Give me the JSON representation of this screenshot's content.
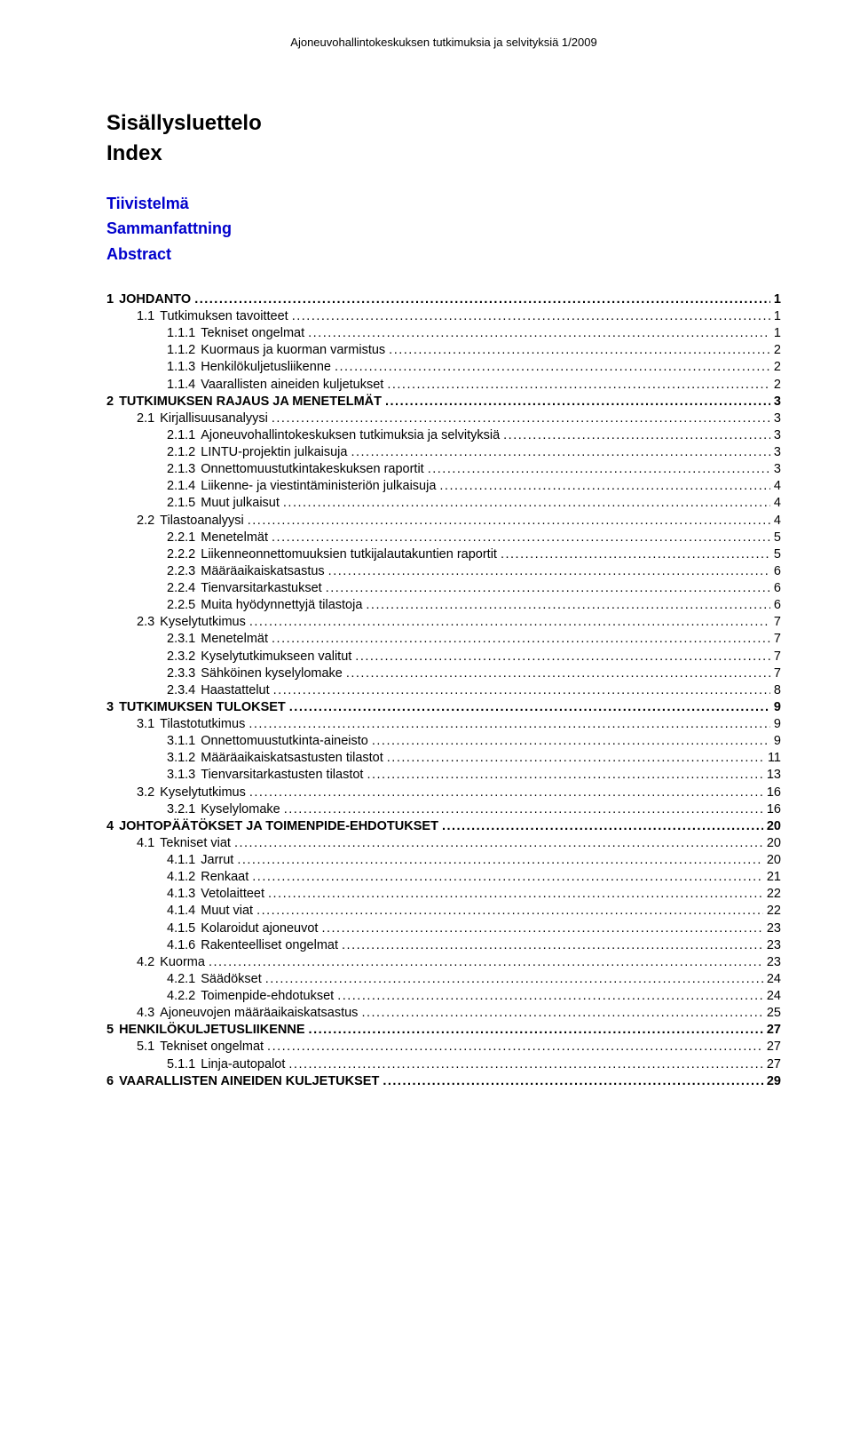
{
  "header": "Ajoneuvohallintokeskuksen tutkimuksia ja selvityksiä 1/2009",
  "title1": "Sisällysluettelo",
  "title2": "Index",
  "front": [
    "Tiivistelmä",
    "Sammanfattning",
    "Abstract"
  ],
  "colors": {
    "link": "#0000cc",
    "text": "#000000",
    "background": "#ffffff"
  },
  "typography": {
    "body_fontsize_pt": 11,
    "title_fontsize_pt": 18,
    "frontlink_fontsize_pt": 14,
    "font_family": "Arial"
  },
  "toc": [
    {
      "num": "1",
      "label": "JOHDANTO",
      "page": "1",
      "level": 0,
      "bold": true
    },
    {
      "num": "1.1",
      "label": "Tutkimuksen tavoitteet",
      "page": "1",
      "level": 1,
      "bold": false
    },
    {
      "num": "1.1.1",
      "label": "Tekniset ongelmat",
      "page": "1",
      "level": 2,
      "bold": false
    },
    {
      "num": "1.1.2",
      "label": "Kuormaus ja kuorman varmistus",
      "page": "2",
      "level": 2,
      "bold": false
    },
    {
      "num": "1.1.3",
      "label": "Henkilökuljetusliikenne",
      "page": "2",
      "level": 2,
      "bold": false
    },
    {
      "num": "1.1.4",
      "label": "Vaarallisten aineiden kuljetukset",
      "page": "2",
      "level": 2,
      "bold": false
    },
    {
      "num": "2",
      "label": "TUTKIMUKSEN RAJAUS JA MENETELMÄT",
      "page": "3",
      "level": 0,
      "bold": true
    },
    {
      "num": "2.1",
      "label": "Kirjallisuusanalyysi",
      "page": "3",
      "level": 1,
      "bold": false
    },
    {
      "num": "2.1.1",
      "label": "Ajoneuvohallintokeskuksen tutkimuksia ja selvityksiä",
      "page": "3",
      "level": 2,
      "bold": false
    },
    {
      "num": "2.1.2",
      "label": "LINTU-projektin julkaisuja",
      "page": "3",
      "level": 2,
      "bold": false
    },
    {
      "num": "2.1.3",
      "label": "Onnettomuustutkintakeskuksen raportit",
      "page": "3",
      "level": 2,
      "bold": false
    },
    {
      "num": "2.1.4",
      "label": "Liikenne- ja viestintäministeriön julkaisuja",
      "page": "4",
      "level": 2,
      "bold": false
    },
    {
      "num": "2.1.5",
      "label": "Muut julkaisut",
      "page": "4",
      "level": 2,
      "bold": false
    },
    {
      "num": "2.2",
      "label": "Tilastoanalyysi",
      "page": "4",
      "level": 1,
      "bold": false
    },
    {
      "num": "2.2.1",
      "label": "Menetelmät",
      "page": "5",
      "level": 2,
      "bold": false
    },
    {
      "num": "2.2.2",
      "label": "Liikenneonnettomuuksien tutkijalautakuntien raportit",
      "page": "5",
      "level": 2,
      "bold": false
    },
    {
      "num": "2.2.3",
      "label": "Määräaikaiskatsastus",
      "page": "6",
      "level": 2,
      "bold": false
    },
    {
      "num": "2.2.4",
      "label": "Tienvarsitarkastukset",
      "page": "6",
      "level": 2,
      "bold": false
    },
    {
      "num": "2.2.5",
      "label": "Muita hyödynnettyjä tilastoja",
      "page": "6",
      "level": 2,
      "bold": false
    },
    {
      "num": "2.3",
      "label": "Kyselytutkimus",
      "page": "7",
      "level": 1,
      "bold": false
    },
    {
      "num": "2.3.1",
      "label": "Menetelmät",
      "page": "7",
      "level": 2,
      "bold": false
    },
    {
      "num": "2.3.2",
      "label": "Kyselytutkimukseen valitut",
      "page": "7",
      "level": 2,
      "bold": false
    },
    {
      "num": "2.3.3",
      "label": "Sähköinen kyselylomake",
      "page": "7",
      "level": 2,
      "bold": false
    },
    {
      "num": "2.3.4",
      "label": "Haastattelut",
      "page": "8",
      "level": 2,
      "bold": false
    },
    {
      "num": "3",
      "label": "TUTKIMUKSEN TULOKSET",
      "page": "9",
      "level": 0,
      "bold": true
    },
    {
      "num": "3.1",
      "label": "Tilastotutkimus",
      "page": "9",
      "level": 1,
      "bold": false
    },
    {
      "num": "3.1.1",
      "label": "Onnettomuustutkinta-aineisto",
      "page": "9",
      "level": 2,
      "bold": false
    },
    {
      "num": "3.1.2",
      "label": "Määräaikaiskatsastusten tilastot",
      "page": "11",
      "level": 2,
      "bold": false
    },
    {
      "num": "3.1.3",
      "label": "Tienvarsitarkastusten tilastot",
      "page": "13",
      "level": 2,
      "bold": false
    },
    {
      "num": "3.2",
      "label": "Kyselytutkimus",
      "page": "16",
      "level": 1,
      "bold": false
    },
    {
      "num": "3.2.1",
      "label": "Kyselylomake",
      "page": "16",
      "level": 2,
      "bold": false
    },
    {
      "num": "4",
      "label": "JOHTOPÄÄTÖKSET JA TOIMENPIDE-EHDOTUKSET",
      "page": "20",
      "level": 0,
      "bold": true
    },
    {
      "num": "4.1",
      "label": "Tekniset viat",
      "page": "20",
      "level": 1,
      "bold": false
    },
    {
      "num": "4.1.1",
      "label": "Jarrut",
      "page": "20",
      "level": 2,
      "bold": false
    },
    {
      "num": "4.1.2",
      "label": "Renkaat",
      "page": "21",
      "level": 2,
      "bold": false
    },
    {
      "num": "4.1.3",
      "label": "Vetolaitteet",
      "page": "22",
      "level": 2,
      "bold": false
    },
    {
      "num": "4.1.4",
      "label": "Muut viat",
      "page": "22",
      "level": 2,
      "bold": false
    },
    {
      "num": "4.1.5",
      "label": "Kolaroidut ajoneuvot",
      "page": "23",
      "level": 2,
      "bold": false
    },
    {
      "num": "4.1.6",
      "label": "Rakenteelliset ongelmat",
      "page": "23",
      "level": 2,
      "bold": false
    },
    {
      "num": "4.2",
      "label": "Kuorma",
      "page": "23",
      "level": 1,
      "bold": false
    },
    {
      "num": "4.2.1",
      "label": "Säädökset",
      "page": "24",
      "level": 2,
      "bold": false
    },
    {
      "num": "4.2.2",
      "label": "Toimenpide-ehdotukset",
      "page": "24",
      "level": 2,
      "bold": false
    },
    {
      "num": "4.3",
      "label": "Ajoneuvojen määräaikaiskatsastus",
      "page": "25",
      "level": 1,
      "bold": false
    },
    {
      "num": "5",
      "label": "HENKILÖKULJETUSLIIKENNE",
      "page": "27",
      "level": 0,
      "bold": true
    },
    {
      "num": "5.1",
      "label": "Tekniset ongelmat",
      "page": "27",
      "level": 1,
      "bold": false
    },
    {
      "num": "5.1.1",
      "label": "Linja-autopalot",
      "page": "27",
      "level": 2,
      "bold": false
    },
    {
      "num": "6",
      "label": "VAARALLISTEN AINEIDEN KULJETUKSET",
      "page": "29",
      "level": 0,
      "bold": true
    }
  ]
}
